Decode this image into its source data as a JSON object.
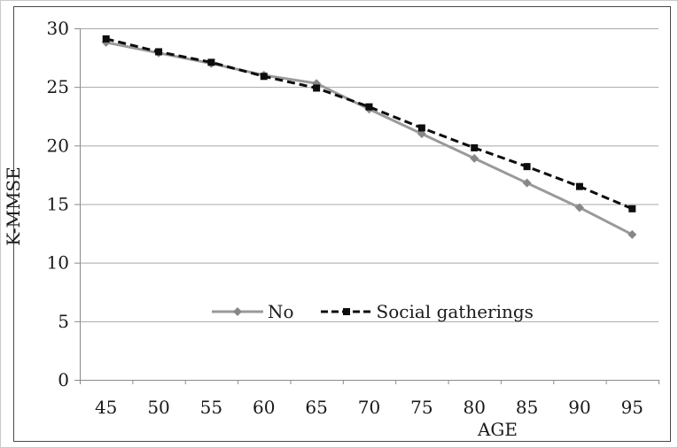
{
  "chart_data": {
    "type": "line",
    "title": "",
    "xlabel": "AGE",
    "ylabel": "K-MMSE",
    "x_categories": [
      45,
      50,
      55,
      60,
      65,
      70,
      75,
      80,
      85,
      90,
      95
    ],
    "y_ticks": [
      0,
      5,
      10,
      15,
      20,
      25,
      30
    ],
    "ylim": [
      0,
      30
    ],
    "grid": "horizontal-gridlines",
    "legend_position": "inside-lower-center",
    "series": [
      {
        "name": "No",
        "marker": "diamond",
        "line_style": "solid",
        "color": "#9a9a9a",
        "marker_color": "#878787",
        "values": [
          28.8,
          27.9,
          27.0,
          26.0,
          25.3,
          23.1,
          21.0,
          18.9,
          16.8,
          14.7,
          12.4
        ]
      },
      {
        "name": "Social gatherings",
        "marker": "square",
        "line_style": "dashed",
        "color": "#0d0d0d",
        "marker_color": "#0d0d0d",
        "values": [
          29.1,
          28.0,
          27.1,
          25.9,
          24.9,
          23.3,
          21.5,
          19.8,
          18.2,
          16.5,
          14.6
        ]
      }
    ]
  },
  "colors": {
    "background": "#ffffff",
    "frame": "#484848",
    "outer_border": "#c9c9c9",
    "gridline": "#a8a8a8",
    "axis": "#8a8a8a",
    "text": "#1a1a1a"
  }
}
